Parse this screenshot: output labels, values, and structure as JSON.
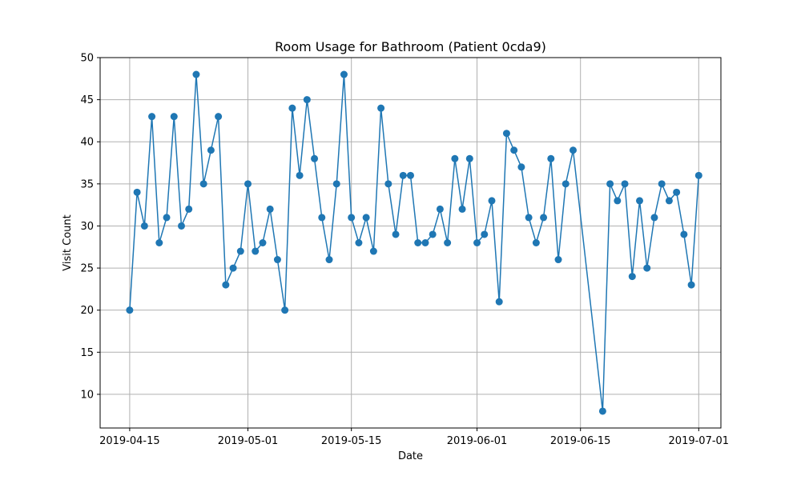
{
  "chart_data": {
    "type": "line",
    "title": "Room Usage for Bathroom (Patient 0cda9)",
    "xlabel": "Date",
    "ylabel": "Visit Count",
    "x_start": "2019-04-15",
    "x_end": "2019-06-30",
    "xlim": [
      "2019-04-11",
      "2019-07-04"
    ],
    "ylim": [
      6,
      50
    ],
    "x_ticks": [
      {
        "date": "2019-04-15",
        "label": "2019-04-15"
      },
      {
        "date": "2019-05-01",
        "label": "2019-05-01"
      },
      {
        "date": "2019-05-15",
        "label": "2019-05-15"
      },
      {
        "date": "2019-06-01",
        "label": "2019-06-01"
      },
      {
        "date": "2019-06-15",
        "label": "2019-06-15"
      },
      {
        "date": "2019-07-01",
        "label": "2019-07-01"
      }
    ],
    "y_ticks": [
      10,
      15,
      20,
      25,
      30,
      35,
      40,
      45,
      50
    ],
    "grid": true,
    "series": [
      {
        "color": "#1f77b4",
        "values": [
          20,
          34,
          30,
          43,
          28,
          31,
          43,
          30,
          32,
          48,
          35,
          39,
          43,
          23,
          25,
          27,
          35,
          27,
          28,
          32,
          26,
          20,
          44,
          36,
          45,
          38,
          31,
          26,
          35,
          48,
          31,
          28,
          31,
          27,
          44,
          35,
          29,
          36,
          36,
          28,
          28,
          29,
          32,
          28,
          38,
          32,
          38,
          28,
          29,
          33,
          21,
          41,
          39,
          37,
          31,
          28,
          31,
          38,
          26,
          35,
          39,
          null,
          null,
          null,
          8,
          35,
          33,
          35,
          24,
          33,
          25,
          31,
          35,
          33,
          34,
          29,
          23,
          36
        ]
      }
    ]
  }
}
